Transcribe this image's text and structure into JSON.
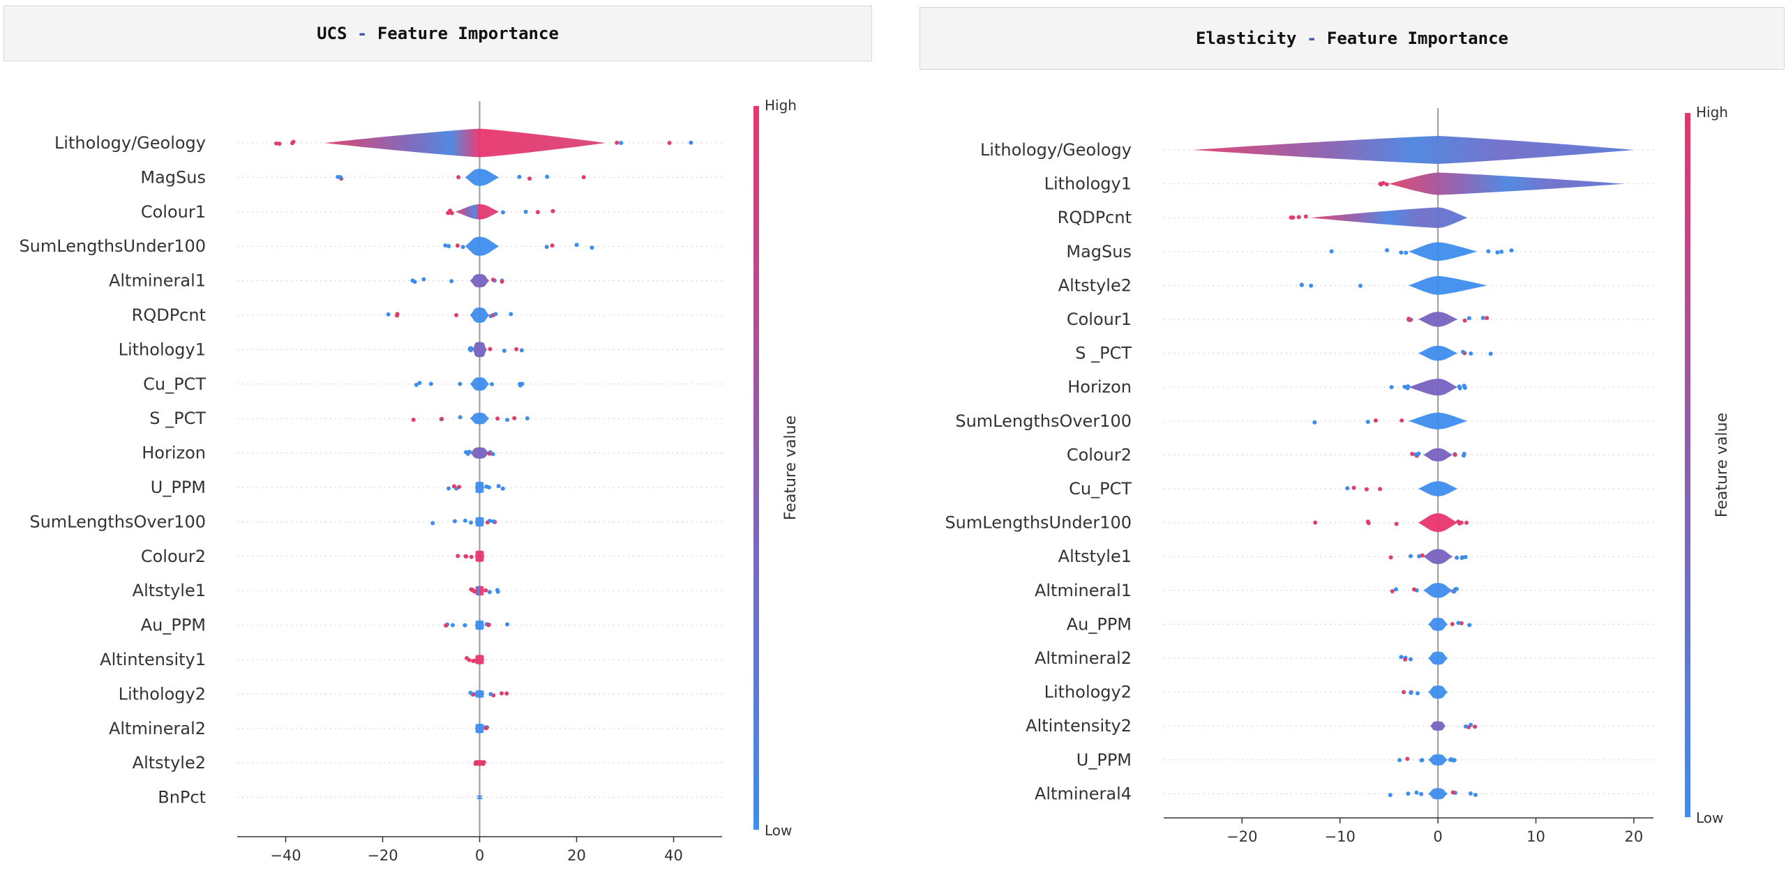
{
  "chart_data": [
    {
      "type": "violin",
      "title": "UCS",
      "title_suffix": "Feature Importance",
      "xlim": [
        -50,
        50
      ],
      "xticks": [
        -40,
        -20,
        0,
        20,
        40
      ],
      "colorbar": {
        "title": "Feature value",
        "high": "High",
        "low": "Low",
        "high_color": "#e8356d",
        "low_color": "#3d8ded"
      },
      "features": [
        {
          "name": "Lithology/Geology",
          "spread": [
            -45,
            46
          ],
          "hw": 0.75,
          "core": [
            -32,
            26
          ],
          "tone": "mixed"
        },
        {
          "name": "MagSus",
          "spread": [
            -34,
            22
          ],
          "hw": 0.45,
          "core": [
            -3,
            4
          ],
          "tone": "low"
        },
        {
          "name": "Colour1",
          "spread": [
            -7,
            21
          ],
          "hw": 0.4,
          "core": [
            -5,
            4
          ],
          "tone": "mixed"
        },
        {
          "name": "SumLengthsUnder100",
          "spread": [
            -9,
            29
          ],
          "hw": 0.5,
          "core": [
            -3,
            4
          ],
          "tone": "low"
        },
        {
          "name": "Altmineral1",
          "spread": [
            -15,
            5
          ],
          "hw": 0.35,
          "core": [
            -2,
            2
          ],
          "tone": "purple"
        },
        {
          "name": "RQDPcnt",
          "spread": [
            -20,
            17
          ],
          "hw": 0.4,
          "core": [
            -2,
            2
          ],
          "tone": "low"
        },
        {
          "name": "Lithology1",
          "spread": [
            -2,
            11
          ],
          "hw": 0.4,
          "core": [
            -1.5,
            1.5
          ],
          "tone": "purple"
        },
        {
          "name": "Cu_PCT",
          "spread": [
            -24,
            9
          ],
          "hw": 0.35,
          "core": [
            -2,
            2
          ],
          "tone": "low"
        },
        {
          "name": "S _PCT",
          "spread": [
            -19,
            12
          ],
          "hw": 0.3,
          "core": [
            -2,
            2
          ],
          "tone": "low"
        },
        {
          "name": "Horizon",
          "spread": [
            -3,
            3
          ],
          "hw": 0.3,
          "core": [
            -2,
            2
          ],
          "tone": "purple"
        },
        {
          "name": "U_PPM",
          "spread": [
            -8,
            5
          ],
          "hw": 0.3,
          "core": [
            -1,
            1
          ],
          "tone": "low"
        },
        {
          "name": "SumLengthsOver100",
          "spread": [
            -11,
            4
          ],
          "hw": 0.25,
          "core": [
            -1,
            1
          ],
          "tone": "low"
        },
        {
          "name": "Colour2",
          "spread": [
            -5,
            1
          ],
          "hw": 0.3,
          "core": [
            -1,
            1
          ],
          "tone": "high"
        },
        {
          "name": "Altstyle1",
          "spread": [
            -2,
            4
          ],
          "hw": 0.25,
          "core": [
            -1,
            1
          ],
          "tone": "mixed"
        },
        {
          "name": "Au_PPM",
          "spread": [
            -12,
            10
          ],
          "hw": 0.25,
          "core": [
            -1,
            1
          ],
          "tone": "low"
        },
        {
          "name": "Altintensity1",
          "spread": [
            -3,
            1
          ],
          "hw": 0.25,
          "core": [
            -1,
            1
          ],
          "tone": "high"
        },
        {
          "name": "Lithology2",
          "spread": [
            -2,
            6
          ],
          "hw": 0.2,
          "core": [
            -1,
            1
          ],
          "tone": "low"
        },
        {
          "name": "Altmineral2",
          "spread": [
            -1,
            2
          ],
          "hw": 0.25,
          "core": [
            -1,
            1
          ],
          "tone": "low"
        },
        {
          "name": "Altstyle2",
          "spread": [
            -1,
            1
          ],
          "hw": 0.15,
          "core": [
            -0.5,
            0.5
          ],
          "tone": "high"
        },
        {
          "name": "BnPct",
          "spread": [
            -0.5,
            0.5
          ],
          "hw": 0.1,
          "core": [
            -0.3,
            0.3
          ],
          "tone": "low"
        }
      ]
    },
    {
      "type": "violin",
      "title": "Elasticity",
      "title_suffix": "Feature Importance",
      "xlim": [
        -28,
        22
      ],
      "xticks": [
        -20,
        -10,
        0,
        10,
        20
      ],
      "colorbar": {
        "title": "Feature value",
        "high": "High",
        "low": "Low",
        "high_color": "#e8356d",
        "low_color": "#3d8ded"
      },
      "features": [
        {
          "name": "Lithology/Geology",
          "spread": [
            -25,
            20
          ],
          "hw": 0.75,
          "core": [
            -25,
            20
          ],
          "tone": "mixed"
        },
        {
          "name": "Lithology1",
          "spread": [
            -6,
            19
          ],
          "hw": 0.6,
          "core": [
            -5,
            19
          ],
          "tone": "mixed"
        },
        {
          "name": "RQDPcnt",
          "spread": [
            -15,
            3
          ],
          "hw": 0.55,
          "core": [
            -13,
            3
          ],
          "tone": "mixed"
        },
        {
          "name": "MagSus",
          "spread": [
            -11,
            9
          ],
          "hw": 0.5,
          "core": [
            -3,
            4
          ],
          "tone": "low"
        },
        {
          "name": "Altstyle2",
          "spread": [
            -15,
            5
          ],
          "hw": 0.5,
          "core": [
            -3,
            5
          ],
          "tone": "low"
        },
        {
          "name": "Colour1",
          "spread": [
            -3,
            5
          ],
          "hw": 0.4,
          "core": [
            -2,
            2
          ],
          "tone": "purple"
        },
        {
          "name": "S _PCT",
          "spread": [
            -2,
            8
          ],
          "hw": 0.4,
          "core": [
            -2,
            2
          ],
          "tone": "low"
        },
        {
          "name": "Horizon",
          "spread": [
            -5,
            3
          ],
          "hw": 0.45,
          "core": [
            -3,
            2
          ],
          "tone": "purple"
        },
        {
          "name": "SumLengthsOver100",
          "spread": [
            -17,
            3
          ],
          "hw": 0.45,
          "core": [
            -3,
            3
          ],
          "tone": "low"
        },
        {
          "name": "Colour2",
          "spread": [
            -3,
            3
          ],
          "hw": 0.35,
          "core": [
            -1.5,
            1.5
          ],
          "tone": "purple"
        },
        {
          "name": "Cu_PCT",
          "spread": [
            -10,
            2
          ],
          "hw": 0.4,
          "core": [
            -2,
            2
          ],
          "tone": "low"
        },
        {
          "name": "SumLengthsUnder100",
          "spread": [
            -16,
            3
          ],
          "hw": 0.5,
          "core": [
            -2,
            2
          ],
          "tone": "high"
        },
        {
          "name": "Altstyle1",
          "spread": [
            -6,
            3
          ],
          "hw": 0.4,
          "core": [
            -1.5,
            1.5
          ],
          "tone": "purple"
        },
        {
          "name": "Altmineral1",
          "spread": [
            -5,
            2
          ],
          "hw": 0.4,
          "core": [
            -1.5,
            1.5
          ],
          "tone": "low"
        },
        {
          "name": "Au_PPM",
          "spread": [
            -1,
            5
          ],
          "hw": 0.35,
          "core": [
            -1,
            1
          ],
          "tone": "low"
        },
        {
          "name": "Altmineral2",
          "spread": [
            -4,
            1
          ],
          "hw": 0.35,
          "core": [
            -1,
            1
          ],
          "tone": "low"
        },
        {
          "name": "Lithology2",
          "spread": [
            -4,
            1
          ],
          "hw": 0.35,
          "core": [
            -1,
            1
          ],
          "tone": "low"
        },
        {
          "name": "Altintensity2",
          "spread": [
            -1,
            4
          ],
          "hw": 0.25,
          "core": [
            -0.8,
            0.8
          ],
          "tone": "purple"
        },
        {
          "name": "U_PPM",
          "spread": [
            -4,
            3
          ],
          "hw": 0.3,
          "core": [
            -1,
            1
          ],
          "tone": "low"
        },
        {
          "name": "Altmineral4",
          "spread": [
            -5,
            4
          ],
          "hw": 0.3,
          "core": [
            -1,
            1
          ],
          "tone": "low"
        }
      ]
    }
  ]
}
